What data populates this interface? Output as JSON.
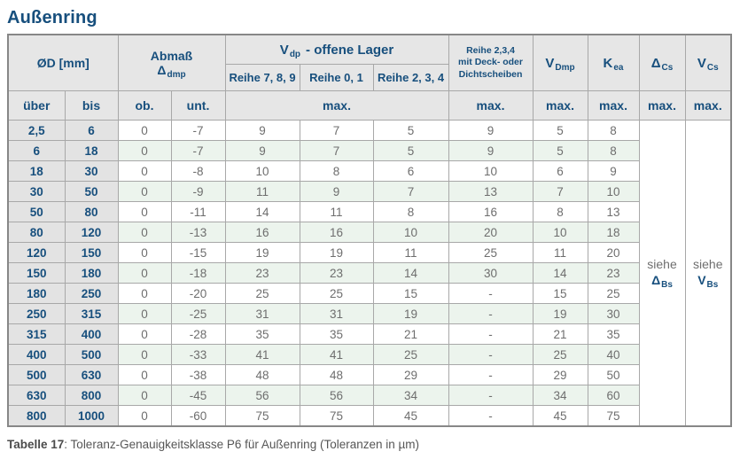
{
  "title": "Außenring",
  "header": {
    "od": "ØD  [mm]",
    "abmass": {
      "line1": "Abmaß",
      "sym": "Δ",
      "sub": "dmp"
    },
    "vdp": {
      "sym": "V",
      "sub": "dp",
      "rest": "-  offene Lager"
    },
    "reihe789": "Reihe 7, 8, 9",
    "reihe01": "Reihe 0, 1",
    "reihe234": "Reihe 2, 3, 4",
    "deck": {
      "line1": "Reihe 2,3,4",
      "line2": "mit Deck- oder",
      "line3": "Dichtscheiben"
    },
    "vdmp": {
      "sym": "V",
      "sub": "Dmp"
    },
    "kea": {
      "sym": "K",
      "sub": "ea"
    },
    "dcs": {
      "sym": "Δ",
      "sub": "Cs"
    },
    "vcs": {
      "sym": "V",
      "sub": "Cs"
    },
    "ueber": "über",
    "bis": "bis",
    "ob": "ob.",
    "unt": "unt.",
    "max": "max."
  },
  "see": {
    "dbs": {
      "word": "siehe",
      "sym": "Δ",
      "sub": "Bs"
    },
    "vbs": {
      "word": "siehe",
      "sym": "V",
      "sub": "Bs"
    }
  },
  "rows": [
    {
      "ueber": "2,5",
      "bis": "6",
      "ob": "0",
      "unt": "-7",
      "r789": "9",
      "r01": "7",
      "r234": "5",
      "deck": "9",
      "vdmp": "5",
      "kea": "8"
    },
    {
      "ueber": "6",
      "bis": "18",
      "ob": "0",
      "unt": "-7",
      "r789": "9",
      "r01": "7",
      "r234": "5",
      "deck": "9",
      "vdmp": "5",
      "kea": "8"
    },
    {
      "ueber": "18",
      "bis": "30",
      "ob": "0",
      "unt": "-8",
      "r789": "10",
      "r01": "8",
      "r234": "6",
      "deck": "10",
      "vdmp": "6",
      "kea": "9"
    },
    {
      "ueber": "30",
      "bis": "50",
      "ob": "0",
      "unt": "-9",
      "r789": "11",
      "r01": "9",
      "r234": "7",
      "deck": "13",
      "vdmp": "7",
      "kea": "10"
    },
    {
      "ueber": "50",
      "bis": "80",
      "ob": "0",
      "unt": "-11",
      "r789": "14",
      "r01": "11",
      "r234": "8",
      "deck": "16",
      "vdmp": "8",
      "kea": "13"
    },
    {
      "ueber": "80",
      "bis": "120",
      "ob": "0",
      "unt": "-13",
      "r789": "16",
      "r01": "16",
      "r234": "10",
      "deck": "20",
      "vdmp": "10",
      "kea": "18"
    },
    {
      "ueber": "120",
      "bis": "150",
      "ob": "0",
      "unt": "-15",
      "r789": "19",
      "r01": "19",
      "r234": "11",
      "deck": "25",
      "vdmp": "11",
      "kea": "20"
    },
    {
      "ueber": "150",
      "bis": "180",
      "ob": "0",
      "unt": "-18",
      "r789": "23",
      "r01": "23",
      "r234": "14",
      "deck": "30",
      "vdmp": "14",
      "kea": "23"
    },
    {
      "ueber": "180",
      "bis": "250",
      "ob": "0",
      "unt": "-20",
      "r789": "25",
      "r01": "25",
      "r234": "15",
      "deck": "-",
      "vdmp": "15",
      "kea": "25"
    },
    {
      "ueber": "250",
      "bis": "315",
      "ob": "0",
      "unt": "-25",
      "r789": "31",
      "r01": "31",
      "r234": "19",
      "deck": "-",
      "vdmp": "19",
      "kea": "30"
    },
    {
      "ueber": "315",
      "bis": "400",
      "ob": "0",
      "unt": "-28",
      "r789": "35",
      "r01": "35",
      "r234": "21",
      "deck": "-",
      "vdmp": "21",
      "kea": "35"
    },
    {
      "ueber": "400",
      "bis": "500",
      "ob": "0",
      "unt": "-33",
      "r789": "41",
      "r01": "41",
      "r234": "25",
      "deck": "-",
      "vdmp": "25",
      "kea": "40"
    },
    {
      "ueber": "500",
      "bis": "630",
      "ob": "0",
      "unt": "-38",
      "r789": "48",
      "r01": "48",
      "r234": "29",
      "deck": "-",
      "vdmp": "29",
      "kea": "50"
    },
    {
      "ueber": "630",
      "bis": "800",
      "ob": "0",
      "unt": "-45",
      "r789": "56",
      "r01": "56",
      "r234": "34",
      "deck": "-",
      "vdmp": "34",
      "kea": "60"
    },
    {
      "ueber": "800",
      "bis": "1000",
      "ob": "0",
      "unt": "-60",
      "r789": "75",
      "r01": "75",
      "r234": "45",
      "deck": "-",
      "vdmp": "45",
      "kea": "75"
    }
  ],
  "caption": {
    "label": "Tabelle 17",
    "text": ": Toleranz-Genauigkeitsklasse P6 für Außenring (Toleranzen in µm)"
  }
}
